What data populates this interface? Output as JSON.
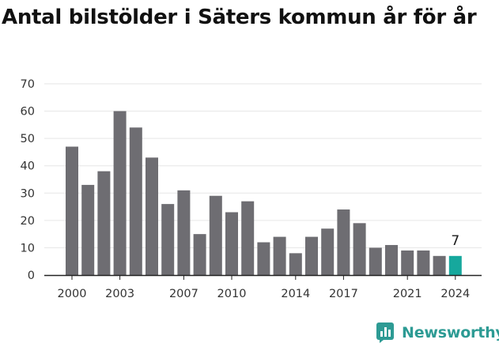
{
  "title": "Antal bilstölder i Säters kommun år för år",
  "brand": {
    "name": "Newsworthy",
    "logo": "newsworthy-logo-icon",
    "color": "#2d9b94"
  },
  "chart_data": {
    "type": "bar",
    "title": "Antal bilstölder i Säters kommun år för år",
    "xlabel": "",
    "ylabel": "",
    "categories": [
      2000,
      2001,
      2002,
      2003,
      2004,
      2005,
      2006,
      2007,
      2008,
      2009,
      2010,
      2011,
      2012,
      2013,
      2014,
      2015,
      2016,
      2017,
      2018,
      2019,
      2020,
      2021,
      2022,
      2023,
      2024
    ],
    "values": [
      47,
      33,
      38,
      60,
      54,
      43,
      26,
      31,
      15,
      29,
      23,
      27,
      12,
      14,
      8,
      14,
      17,
      24,
      19,
      10,
      11,
      9,
      9,
      7,
      7
    ],
    "x_tick_labels": [
      "2000",
      "2003",
      "2007",
      "2010",
      "2014",
      "2017",
      "2021",
      "2024"
    ],
    "y_ticks": [
      0,
      10,
      20,
      30,
      40,
      50,
      60,
      70
    ],
    "ylim": [
      0,
      70
    ],
    "grid": true,
    "highlight": {
      "category": 2024,
      "label": "7"
    },
    "colors": {
      "bar": "#6e6d72",
      "highlight": "#16a89d",
      "grid": "#e6e6e6",
      "axis": "#222222"
    }
  }
}
